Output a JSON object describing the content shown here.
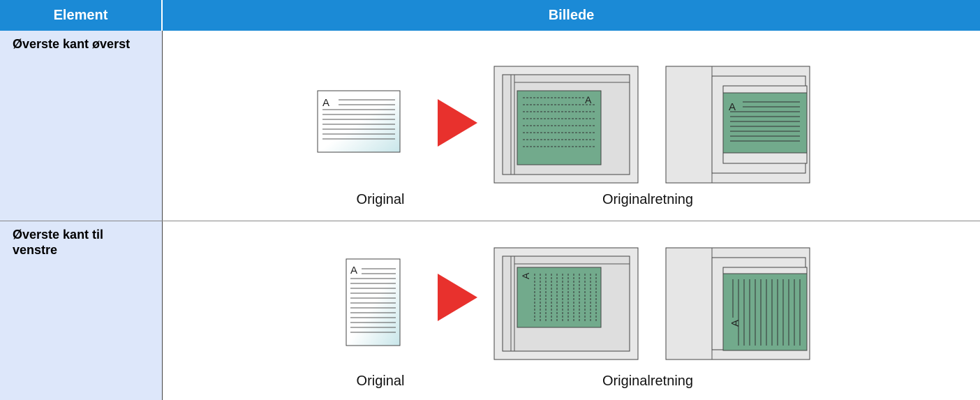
{
  "header": {
    "columns": [
      "Element",
      "Billede"
    ]
  },
  "table": {
    "rows": [
      {
        "element": "Øverste kant øverst",
        "labels": [
          "Original",
          "Originalretning"
        ],
        "letter": "A"
      },
      {
        "element": "Øverste kant til venstre",
        "labels": [
          "Original",
          "Originalretning"
        ],
        "letter": "A"
      }
    ]
  }
}
